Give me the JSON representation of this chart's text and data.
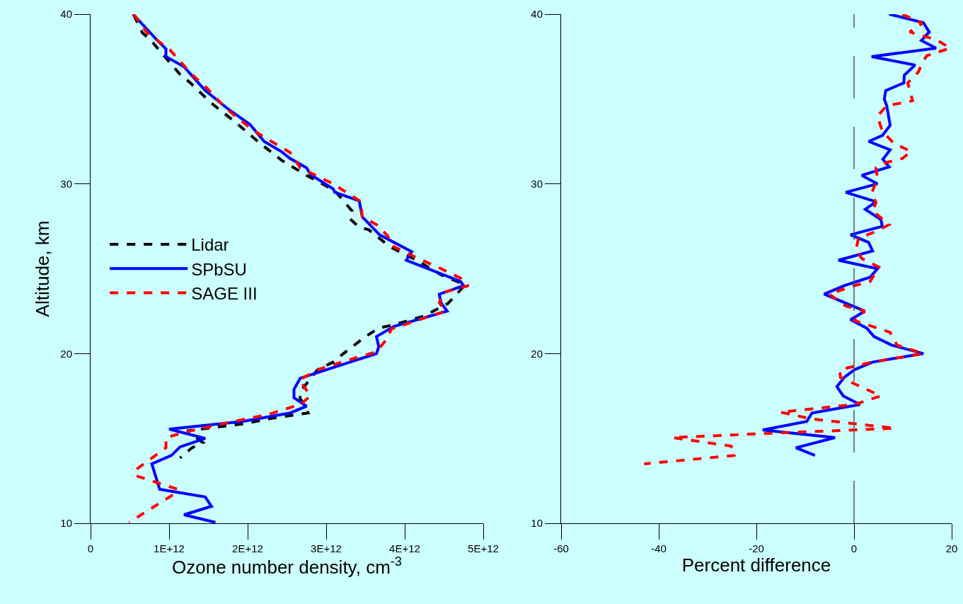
{
  "chart_data": [
    {
      "type": "line",
      "xlabel": "Ozone number density, cm$^{-3}$",
      "ylabel": "Altitude, km",
      "xlim": [
        0,
        5000000000000.0
      ],
      "ylim": [
        10,
        40
      ],
      "xticks": [
        0,
        {
          "value": 1000000000000.0,
          "label": "1E+12"
        },
        {
          "value": 2000000000000.0,
          "label": "2E+12"
        },
        {
          "value": 3000000000000.0,
          "label": "3E+12"
        },
        {
          "value": 4000000000000.0,
          "label": "4E+12"
        },
        {
          "value": 5000000000000.0,
          "label": "5E+12"
        }
      ],
      "yticks": [
        10,
        20,
        30,
        40
      ],
      "grid": false,
      "legend": "left",
      "marker": "none",
      "series": [
        {
          "name": "Lidar",
          "color": "#000000",
          "line_style": "dashed",
          "x": [
            550000000000.0,
            660000000000.0,
            760000000000.0,
            1000000000000.0,
            1140000000000.0,
            1270000000000.0,
            1540000000000.0,
            1840000000000.0,
            2130000000000.0,
            2430000000000.0,
            2750000000000.0,
            3110000000000.0,
            3330000000000.0,
            3300000000000.0,
            3420000000000.0,
            3540000000000.0,
            3810000000000.0,
            4150000000000.0,
            4460000000000.0,
            4770000000000.0,
            4550000000000.0,
            4240000000000.0,
            3860000000000.0,
            3670000000000.0,
            3500000000000.0,
            3220000000000.0,
            3090000000000.0,
            2890000000000.0,
            2660000000000.0,
            2670000000000.0,
            2770000000000.0,
            2320000000000.0,
            1930000000000.0,
            1230000000000.0,
            1430000000000.0,
            1290000000000.0,
            1140000000000.0
          ],
          "values": [
            39.95,
            38.9,
            38.5,
            37.2,
            36.45,
            35.95,
            34.75,
            33.65,
            32.5,
            31.4,
            30.5,
            29.6,
            28.4,
            27.95,
            27.45,
            27.3,
            26.3,
            25.5,
            24.65,
            24.05,
            22.95,
            22.2,
            21.7,
            21.5,
            21.0,
            20.0,
            19.5,
            19.05,
            17.7,
            17.35,
            16.5,
            16.2,
            15.85,
            15.45,
            14.75,
            14.45,
            13.85
          ]
        },
        {
          "name": "SPbSU",
          "color": "#0000ff",
          "line_style": "solid",
          "x": [
            540000000000.0,
            840000000000.0,
            960000000000.0,
            960000000000.0,
            1190000000000.0,
            1460000000000.0,
            1740000000000.0,
            2030000000000.0,
            2210000000000.0,
            2430000000000.0,
            2540000000000.0,
            2750000000000.0,
            2800000000000.0,
            3090000000000.0,
            3110000000000.0,
            3420000000000.0,
            3460000000000.0,
            3680000000000.0,
            4090000000000.0,
            4020000000000.0,
            4710000000000.0,
            4750000000000.0,
            4440000000000.0,
            4460000000000.0,
            4540000000000.0,
            3860000000000.0,
            3640000000000.0,
            3670000000000.0,
            3640000000000.0,
            2670000000000.0,
            2590000000000.0,
            2590000000000.0,
            2750000000000.0,
            2540000000000.0,
            1930000000000.0,
            1000000000000.0,
            1460000000000.0,
            1140000000000.0,
            1030000000000.0,
            780000000000.0,
            880000000000.0,
            1460000000000.0,
            1540000000000.0,
            1190000000000.0,
            1590000000000.0
          ],
          "values": [
            40.0,
            38.5,
            37.95,
            37.5,
            36.9,
            35.5,
            34.45,
            33.5,
            32.5,
            31.9,
            31.5,
            30.95,
            30.55,
            29.7,
            29.5,
            29.0,
            28.05,
            27.0,
            26.0,
            25.5,
            24.25,
            24.0,
            23.5,
            23.0,
            22.5,
            21.6,
            21.0,
            20.4,
            20.0,
            18.55,
            17.9,
            17.4,
            16.9,
            16.5,
            16.0,
            15.55,
            15.0,
            14.5,
            14.0,
            13.5,
            12.0,
            11.55,
            11.0,
            10.5,
            10.05
          ]
        },
        {
          "name": "SAGE III",
          "color": "#ff0000",
          "line_style": "dashed",
          "x": [
            550000000000.0,
            720000000000.0,
            1010000000000.0,
            1290000000000.0,
            1480000000000.0,
            1680000000000.0,
            1840000000000.0,
            2090000000000.0,
            2250000000000.0,
            2540000000000.0,
            2670000000000.0,
            3090000000000.0,
            3440000000000.0,
            3460000000000.0,
            3640000000000.0,
            3780000000000.0,
            3860000000000.0,
            4150000000000.0,
            4440000000000.0,
            4710000000000.0,
            4810000000000.0,
            4490000000000.0,
            4440000000000.0,
            4520000000000.0,
            3830000000000.0,
            3770000000000.0,
            3640000000000.0,
            3340000000000.0,
            2890000000000.0,
            2660000000000.0,
            2800000000000.0,
            2670000000000.0,
            2250000000000.0,
            1770000000000.0,
            1230000000000.0,
            960000000000.0,
            960000000000.0,
            560000000000.0,
            580000000000.0,
            1110000000000.0,
            1090000000000.0,
            490000000000.0
          ],
          "values": [
            40.0,
            38.9,
            37.9,
            36.45,
            35.65,
            34.65,
            34.0,
            33.1,
            32.65,
            31.85,
            30.95,
            30.0,
            28.95,
            28.05,
            27.6,
            26.95,
            26.3,
            25.65,
            25.05,
            24.45,
            24.0,
            23.6,
            23.0,
            22.5,
            21.45,
            20.85,
            20.1,
            19.7,
            19.05,
            18.45,
            17.5,
            17.0,
            16.4,
            15.95,
            15.4,
            15.05,
            14.45,
            13.1,
            12.8,
            12.0,
            11.8,
            10.05
          ]
        }
      ]
    },
    {
      "type": "line",
      "xlabel": "Percent difference",
      "xlim": [
        -60,
        20
      ],
      "ylim": [
        10,
        40
      ],
      "xticks": [
        -60,
        -40,
        -20,
        0,
        20
      ],
      "yticks": [
        10,
        20,
        30,
        40
      ],
      "grid": false,
      "legend": false,
      "marker": "none",
      "ref_lines": [
        {
          "axis": "x",
          "value": 0,
          "color": "#555555",
          "line_style": "dashed"
        }
      ],
      "series": [
        {
          "color": "#0000ff",
          "line_style": "solid",
          "x": [
            7.2,
            14.2,
            15.4,
            13.8,
            16.8,
            3.6,
            12.5,
            10.3,
            10.2,
            6.5,
            6.2,
            6.7,
            7.4,
            5.8,
            3.0,
            7.4,
            5.9,
            7.2,
            1.6,
            4.8,
            -1.7,
            4.5,
            2.3,
            5.5,
            5.8,
            -0.7,
            3.0,
            3.8,
            -3.2,
            4.8,
            3.3,
            -2.0,
            -6.1,
            2.2,
            -0.7,
            2.6,
            4.1,
            7.7,
            14.2,
            3.8,
            0.1,
            -2.0,
            -3.5,
            -2.2,
            1.2,
            -8.6,
            -9.7,
            -18.7,
            -3.9,
            -11.9,
            -8.0
          ],
          "values": [
            40.0,
            39.5,
            38.95,
            38.45,
            38.0,
            37.5,
            37.0,
            36.4,
            35.95,
            35.5,
            35.0,
            34.6,
            33.45,
            32.85,
            32.5,
            32.0,
            31.45,
            31.0,
            30.5,
            30.0,
            29.5,
            28.95,
            28.5,
            27.9,
            27.5,
            27.0,
            26.55,
            26.05,
            25.5,
            25.0,
            24.5,
            24.0,
            23.5,
            22.5,
            22.0,
            21.5,
            21.0,
            20.5,
            20.0,
            19.5,
            19.05,
            18.6,
            18.05,
            17.5,
            17.0,
            16.5,
            16.0,
            15.5,
            15.05,
            14.45,
            14.0
          ]
        },
        {
          "color": "#ff0000",
          "line_style": "dashed",
          "x": [
            9.9,
            14.0,
            11.4,
            16.8,
            19.7,
            14.9,
            14.0,
            13.2,
            11.0,
            12.0,
            6.7,
            4.8,
            5.8,
            8.1,
            11.7,
            9.9,
            6.5,
            4.5,
            4.8,
            3.6,
            4.5,
            3.8,
            7.2,
            4.5,
            0.9,
            0.4,
            1.6,
            5.1,
            3.3,
            0,
            -5.1,
            -1.7,
            2.2,
            0.1,
            7.4,
            8.8,
            14.2,
            3.8,
            -2.9,
            -2.8,
            5.5,
            0,
            -15.1,
            -8.7,
            8.4,
            -17.4,
            -37.2,
            -25.2,
            -24.2,
            -24.5,
            -43.0
          ],
          "values": [
            40.0,
            39.45,
            38.95,
            38.5,
            38.0,
            37.55,
            37.15,
            36.6,
            35.95,
            34.9,
            34.6,
            34.0,
            33.1,
            32.4,
            31.9,
            31.5,
            31.25,
            30.95,
            30.3,
            29.45,
            28.9,
            28.4,
            27.6,
            27.2,
            26.8,
            26.1,
            25.6,
            25.1,
            24.25,
            24.0,
            23.5,
            22.8,
            22.5,
            21.95,
            21.25,
            20.5,
            20.0,
            19.5,
            19.05,
            18.6,
            17.5,
            17.0,
            16.55,
            16.15,
            15.6,
            15.3,
            15.05,
            14.55,
            14.2,
            14.0,
            13.5
          ]
        }
      ]
    }
  ]
}
